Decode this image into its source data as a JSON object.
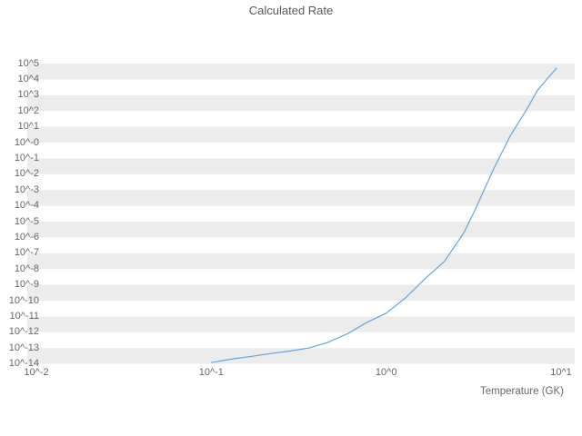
{
  "chart_data": {
    "type": "line",
    "title": "Calculated Rate",
    "xlabel": "Temperature (GK)",
    "ylabel": "",
    "x_scale": "log",
    "y_scale": "log",
    "xlim": [
      0.01,
      10
    ],
    "ylim": [
      1e-14,
      100000.0
    ],
    "grid": "horizontal-stripes",
    "legend": "none",
    "x_ticks": [
      {
        "label": "10^-2",
        "value": 0.01
      },
      {
        "label": "10^-1",
        "value": 0.1
      },
      {
        "label": "10^0",
        "value": 1
      },
      {
        "label": "10^1",
        "value": 10
      }
    ],
    "y_ticks": [
      {
        "label": "10^5",
        "value": 100000.0
      },
      {
        "label": "10^4",
        "value": 10000.0
      },
      {
        "label": "10^3",
        "value": 1000.0
      },
      {
        "label": "10^2",
        "value": 100.0
      },
      {
        "label": "10^1",
        "value": 10.0
      },
      {
        "label": "10^-0",
        "value": 1
      },
      {
        "label": "10^-1",
        "value": 0.1
      },
      {
        "label": "10^-2",
        "value": 0.01
      },
      {
        "label": "10^-3",
        "value": 0.001
      },
      {
        "label": "10^-4",
        "value": 0.0001
      },
      {
        "label": "10^-5",
        "value": 1e-05
      },
      {
        "label": "10^-6",
        "value": 1e-06
      },
      {
        "label": "10^-7",
        "value": 1e-07
      },
      {
        "label": "10^-8",
        "value": 1e-08
      },
      {
        "label": "10^-9",
        "value": 1e-09
      },
      {
        "label": "10^-10",
        "value": 1e-10
      },
      {
        "label": "10^-11",
        "value": 1e-11
      },
      {
        "label": "10^-12",
        "value": 1e-12
      },
      {
        "label": "10^-13",
        "value": 1e-13
      },
      {
        "label": "10^-14",
        "value": 1e-14
      }
    ],
    "series": [
      {
        "name": "calculated-rate",
        "color": "#6ba3d4",
        "x": [
          0.1,
          0.13,
          0.17,
          0.22,
          0.28,
          0.36,
          0.46,
          0.6,
          0.77,
          1.0,
          1.29,
          1.67,
          2.15,
          2.78,
          3.18,
          4.1,
          5.1,
          6.4,
          7.3,
          8.5,
          9.4
        ],
        "y": [
          1.2e-14,
          2e-14,
          3e-14,
          4.5e-14,
          6.5e-14,
          1e-13,
          2.2e-13,
          8e-13,
          4e-12,
          1.6e-11,
          1.5e-10,
          2.5e-09,
          3e-08,
          2e-06,
          4e-05,
          0.02,
          2.5,
          140.0,
          1900.0,
          14000.0,
          50000.0
        ]
      }
    ],
    "stripe_color": "#ececec",
    "background_color": "#ffffff"
  }
}
